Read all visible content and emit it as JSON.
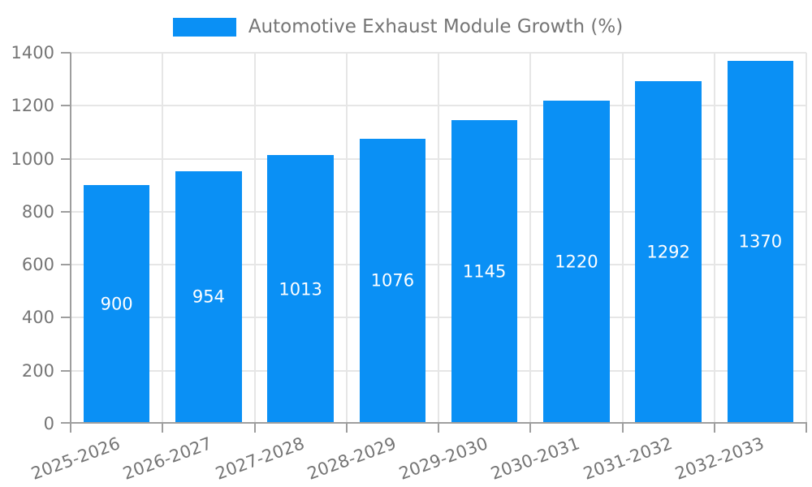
{
  "legend": {
    "label": "Automotive Exhaust Module Growth (%)"
  },
  "colors": {
    "bar": "#0a90f5",
    "axis": "#9e9e9e",
    "grid": "#e6e6e6",
    "tick_label": "#757575",
    "value_label": "#ffffff",
    "legend_label": "#757575",
    "background": "#ffffff"
  },
  "chart_data": {
    "type": "bar",
    "title": "Automotive Exhaust Module Growth (%)",
    "categories": [
      "2025-2026",
      "2026-2027",
      "2027-2028",
      "2028-2029",
      "2029-2030",
      "2030-2031",
      "2031-2032",
      "2032-2033"
    ],
    "values": [
      900,
      954,
      1013,
      1076,
      1145,
      1220,
      1292,
      1370
    ],
    "series": [
      {
        "name": "Automotive Exhaust Module Growth (%)",
        "values": [
          900,
          954,
          1013,
          1076,
          1145,
          1220,
          1292,
          1370
        ]
      }
    ],
    "xlabel": "",
    "ylabel": "",
    "ylim": [
      0,
      1400
    ],
    "ytick_interval": 200,
    "yticks": [
      0,
      200,
      400,
      600,
      800,
      1000,
      1200,
      1400
    ],
    "grid": true,
    "legend_position": "top-center",
    "value_label_position": "inside-middle",
    "xtick_rotation_deg": -20
  }
}
